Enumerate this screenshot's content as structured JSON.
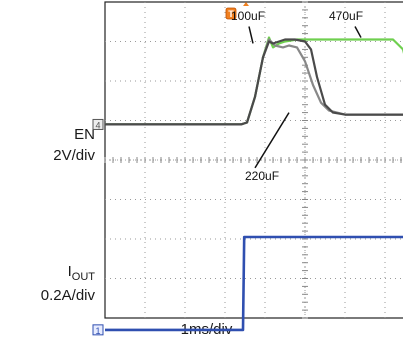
{
  "chart_data": {
    "type": "line",
    "title": "",
    "xlabel": "1ms/div",
    "time_per_div": "1ms/div",
    "x_unit": "div",
    "divisions": {
      "x": 10,
      "y": 8
    },
    "grid": true,
    "channels": [
      {
        "name": "EN",
        "scale": "2V/div",
        "marker": "1",
        "color": "#2f4fb0"
      },
      {
        "name": "IOUT",
        "scale": "0.2A/div",
        "marker": "4",
        "color": "#555555"
      }
    ],
    "trigger_marker": "T",
    "series": [
      {
        "name": "",
        "channel": "EN",
        "color": "#2f4fb0",
        "x": [
          0,
          3.45,
          3.48,
          3.52,
          10
        ],
        "y": [
          -4.3,
          -4.3,
          -1.95,
          -1.95,
          -1.95
        ]
      },
      {
        "name": "100uF",
        "channel": "IOUT",
        "color": "#4a4a4a",
        "x": [
          0,
          3.4,
          3.55,
          3.75,
          3.95,
          4.1,
          4.2,
          4.35,
          4.5,
          4.75,
          5.0,
          5.15,
          5.3,
          5.5,
          5.7,
          6.0,
          10
        ],
        "y": [
          0.9,
          0.9,
          0.95,
          1.6,
          2.6,
          3.0,
          2.95,
          3.0,
          3.05,
          3.05,
          3.0,
          2.8,
          2.1,
          1.4,
          1.2,
          1.15,
          1.15
        ]
      },
      {
        "name": "220uF",
        "channel": "IOUT",
        "color": "#888888",
        "x": [
          0,
          3.4,
          3.55,
          3.75,
          3.95,
          4.1,
          4.25,
          4.45,
          4.6,
          4.8,
          5.0,
          5.2,
          5.4,
          5.6,
          6.0,
          7.0,
          10
        ],
        "y": [
          0.9,
          0.9,
          0.95,
          1.6,
          2.6,
          3.05,
          2.9,
          2.85,
          2.9,
          2.85,
          2.5,
          1.9,
          1.45,
          1.25,
          1.15,
          1.15,
          1.15
        ]
      },
      {
        "name": "470uF",
        "channel": "IOUT",
        "color": "#6fcf4f",
        "x": [
          0,
          3.4,
          3.55,
          3.75,
          3.95,
          4.1,
          4.2,
          4.35,
          4.5,
          4.8,
          5.2,
          6.0,
          7.2,
          7.45,
          7.6,
          7.8,
          8.0,
          8.3,
          8.6,
          10
        ],
        "y": [
          0.9,
          0.9,
          0.95,
          1.6,
          2.6,
          3.1,
          2.85,
          2.95,
          3.0,
          3.05,
          3.05,
          3.05,
          3.05,
          2.8,
          2.2,
          1.65,
          1.35,
          1.2,
          1.15,
          1.15
        ]
      }
    ],
    "annotations": [
      {
        "text": "100uF",
        "target_series": "100uF"
      },
      {
        "text": "470uF",
        "target_series": "470uF"
      },
      {
        "text": "220uF",
        "target_series": "220uF"
      }
    ]
  },
  "labels": {
    "en_name": "EN",
    "en_scale": "2V/div",
    "iout_main": "I",
    "iout_sub": "OUT",
    "iout_scale": "0.2A/div",
    "time_scale": "1ms/div"
  }
}
